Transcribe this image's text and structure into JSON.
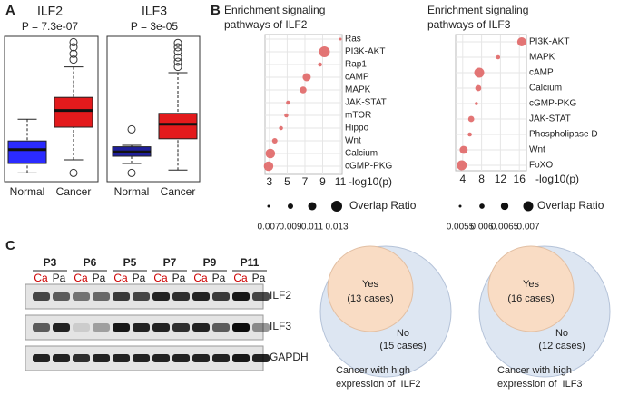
{
  "panels": {
    "a": "A",
    "b": "B",
    "c": "C"
  },
  "chart_data": [
    {
      "type": "box",
      "title": "ILF2",
      "subtitle": "P = 7.3e-07",
      "categories": [
        "Normal",
        "Cancer"
      ],
      "colors": [
        "#2b2bff",
        "#e31a1c"
      ],
      "ylim": [
        0,
        10
      ],
      "boxes": [
        {
          "whislo": 0.6,
          "q1": 1.25,
          "med": 2.2,
          "q3": 2.8,
          "whishi": 4.3,
          "fliers": []
        },
        {
          "whislo": 1.5,
          "q1": 3.75,
          "med": 4.9,
          "q3": 5.8,
          "whishi": 7.9,
          "fliers": [
            9.6,
            9.25,
            8.8,
            8.4,
            0.6
          ]
        }
      ]
    },
    {
      "type": "box",
      "title": "ILF3",
      "subtitle": "P = 3e-05",
      "categories": [
        "Normal",
        "Cancer"
      ],
      "colors": [
        "#1f1f9a",
        "#e31a1c"
      ],
      "ylim": [
        0,
        10
      ],
      "boxes": [
        {
          "whislo": 1.25,
          "q1": 1.75,
          "med": 2.05,
          "q3": 2.4,
          "whishi": 2.5,
          "fliers": [
            3.6,
            0.6
          ]
        },
        {
          "whislo": 0.8,
          "q1": 2.95,
          "med": 3.95,
          "q3": 4.7,
          "whishi": 7.5,
          "fliers": [
            9.55,
            9.25,
            8.95,
            8.55,
            8.25,
            7.9
          ]
        }
      ]
    },
    {
      "type": "dot",
      "title": [
        "Enrichment signaling",
        "pathways of ILF2"
      ],
      "xlabel": "-log10(p)",
      "categories": [
        "Ras",
        "PI3K-AKT",
        "Rap1",
        "cAMP",
        "MAPK",
        "JAK-STAT",
        "mTOR",
        "Hippo",
        "Wnt",
        "Calcium",
        "cGMP-PKG"
      ],
      "values": [
        11,
        9.2,
        8.7,
        7.2,
        6.8,
        5.1,
        4.9,
        4.3,
        3.6,
        3.1,
        2.9
      ],
      "sizes": [
        0.007,
        0.013,
        0.008,
        0.011,
        0.01,
        0.008,
        0.008,
        0.008,
        0.009,
        0.012,
        0.012
      ],
      "size_label": "Overlap Ratio",
      "sizeticks": [
        0.007,
        0.009,
        0.011,
        0.013
      ],
      "xlim": [
        2.5,
        11.2
      ],
      "xticks": [
        3,
        5,
        7,
        9,
        11
      ],
      "color": "#e06666",
      "grid": true
    },
    {
      "type": "dot",
      "title": [
        "Enrichment signaling",
        "pathways of ILF3"
      ],
      "xlabel": "-log10(p)",
      "categories": [
        "PI3K-AKT",
        "MAPK",
        "cAMP",
        "Calcium",
        "cGMP-PKG",
        "JAK-STAT",
        "Phospholipase D",
        "Wnt",
        "FoXO"
      ],
      "values": [
        16.5,
        11.5,
        7.5,
        7.3,
        6.9,
        5.8,
        5.5,
        4.2,
        3.8
      ],
      "sizes": [
        0.0068,
        0.0058,
        0.007,
        0.0062,
        0.0056,
        0.0062,
        0.0058,
        0.0066,
        0.007
      ],
      "size_label": "Overlap Ratio",
      "sizeticks": [
        0.0055,
        0.006,
        0.0065,
        0.007
      ],
      "xlim": [
        2.5,
        17.5
      ],
      "xticks": [
        4,
        8,
        12,
        16
      ],
      "color": "#e06666",
      "grid": true
    }
  ],
  "blot": {
    "samples": [
      "P3",
      "P6",
      "P5",
      "P7",
      "P9",
      "P11"
    ],
    "lanes": [
      "Ca",
      "Pa"
    ],
    "proteins": [
      "ILF2",
      "ILF3",
      "GAPDH"
    ]
  },
  "venn": [
    {
      "yes": "Yes",
      "yes_cases": "(13 cases)",
      "no": "No",
      "no_cases": "(15 cases)",
      "caption": [
        "Cancer with high",
        "expression of  ILF2"
      ]
    },
    {
      "yes": "Yes",
      "yes_cases": "(16 cases)",
      "no": "No",
      "no_cases": "(12 cases)",
      "caption": [
        "Cancer with high",
        "expression of  ILF3"
      ]
    }
  ]
}
